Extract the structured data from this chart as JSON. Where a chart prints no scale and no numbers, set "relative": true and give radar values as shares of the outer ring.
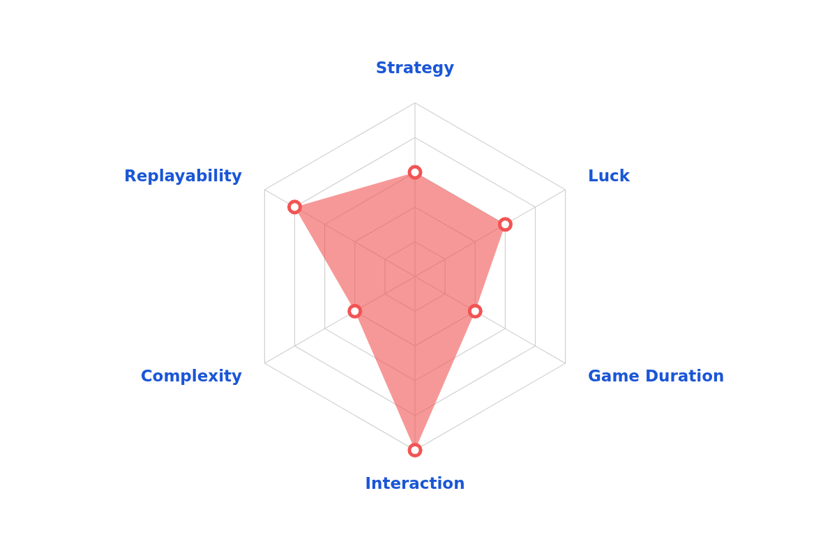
{
  "chart_data": {
    "type": "radar",
    "relative": true,
    "categories": [
      "Strategy",
      "Luck",
      "Game Duration",
      "Interaction",
      "Complexity",
      "Replayability"
    ],
    "series": [
      {
        "color": "#f25454",
        "values": [
          0.6,
          0.6,
          0.4,
          1.0,
          0.4,
          0.8
        ]
      }
    ],
    "grid": true,
    "marker": "circle"
  }
}
